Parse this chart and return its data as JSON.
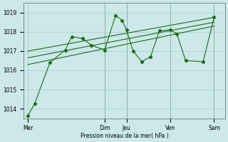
{
  "xlabel": "Pression niveau de la mer( hPa )",
  "bg_color": "#cce8e8",
  "grid_color": "#aacccc",
  "line_color": "#1a6b1a",
  "vline_color": "#3a5a3a",
  "ylim": [
    1013.5,
    1019.5
  ],
  "yticks": [
    1014,
    1015,
    1016,
    1017,
    1018,
    1019
  ],
  "day_labels": [
    "Mer",
    "Dim",
    "Jeu",
    "Ven",
    "Sam"
  ],
  "day_positions": [
    0.0,
    3.5,
    4.5,
    6.5,
    8.5
  ],
  "vline_positions": [
    3.5,
    4.5,
    6.5,
    8.5
  ],
  "xlim": [
    -0.2,
    9.0
  ],
  "series1_x": [
    0.0,
    0.3,
    1.0,
    1.7,
    2.0,
    2.5,
    2.9,
    3.5,
    4.0,
    4.3,
    4.5,
    4.8,
    5.2,
    5.6,
    6.0,
    6.5,
    6.8,
    7.2,
    8.0,
    8.5
  ],
  "series1_y": [
    1013.65,
    1014.25,
    1016.4,
    1017.05,
    1017.75,
    1017.65,
    1017.3,
    1017.05,
    1018.85,
    1018.6,
    1018.1,
    1017.0,
    1016.45,
    1016.7,
    1018.05,
    1018.1,
    1017.9,
    1016.5,
    1016.45,
    1018.75
  ],
  "trend1_x": [
    0.0,
    8.5
  ],
  "trend1_y": [
    1016.3,
    1018.3
  ],
  "trend2_x": [
    0.0,
    8.5
  ],
  "trend2_y": [
    1016.65,
    1018.5
  ],
  "trend3_x": [
    0.0,
    8.5
  ],
  "trend3_y": [
    1017.0,
    1018.75
  ],
  "ylabel_fontsize": 5.5,
  "tick_fontsize": 5.5,
  "linewidth": 0.8,
  "markersize": 2.2
}
